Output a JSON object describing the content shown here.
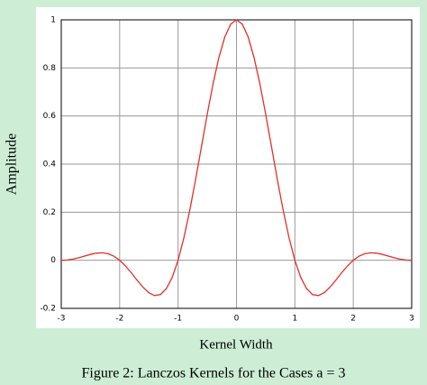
{
  "chart_data": {
    "type": "line",
    "x_label": "Kernel Width",
    "y_label": "Amplitude",
    "caption": "Figure 2: Lanczos Kernels for the Cases a = 3",
    "x": [
      -3,
      -2.9,
      -2.8,
      -2.7,
      -2.6,
      -2.5,
      -2.4,
      -2.3,
      -2.2,
      -2.1,
      -2,
      -1.9,
      -1.8,
      -1.7,
      -1.6,
      -1.5,
      -1.4,
      -1.3,
      -1.2,
      -1.1,
      -1,
      -0.9,
      -0.8,
      -0.7,
      -0.6,
      -0.5,
      -0.4,
      -0.3,
      -0.2,
      -0.1,
      0,
      0.1,
      0.2,
      0.3,
      0.4,
      0.5,
      0.6,
      0.7,
      0.8,
      0.9,
      1,
      1.1,
      1.2,
      1.3,
      1.4,
      1.5,
      1.6,
      1.7,
      1.8,
      1.9,
      2,
      2.1,
      2.2,
      2.3,
      2.4,
      2.5,
      2.6,
      2.7,
      2.8,
      2.9,
      3
    ],
    "series": [
      {
        "color": "#e0302a",
        "values": [
          0,
          0.0012,
          0.0047,
          0.0104,
          0.0174,
          0.0243,
          0.0295,
          0.0311,
          0.0274,
          0.0172,
          0,
          -0.0238,
          -0.0524,
          -0.0832,
          -0.1123,
          -0.1351,
          -0.1467,
          -0.1423,
          -0.118,
          -0.0709,
          0,
          0.0938,
          0.2075,
          0.3358,
          0.472,
          0.6079,
          0.7349,
          0.8443,
          0.9287,
          0.9818,
          1,
          0.9818,
          0.9287,
          0.8443,
          0.7349,
          0.6079,
          0.472,
          0.3358,
          0.2075,
          0.0938,
          0,
          -0.0709,
          -0.118,
          -0.1423,
          -0.1467,
          -0.1351,
          -0.1123,
          -0.0832,
          -0.0524,
          -0.0238,
          0,
          0.0172,
          0.0274,
          0.0311,
          0.0295,
          0.0243,
          0.0174,
          0.0104,
          0.0047,
          0.0012,
          0
        ]
      }
    ],
    "xlim": [
      -3,
      3
    ],
    "ylim": [
      -0.2,
      1
    ],
    "xticks": [
      -3,
      -2,
      -1,
      0,
      1,
      2,
      3
    ],
    "yticks": [
      -0.2,
      0,
      0.2,
      0.4,
      0.6,
      0.8,
      1
    ],
    "grid": true
  }
}
